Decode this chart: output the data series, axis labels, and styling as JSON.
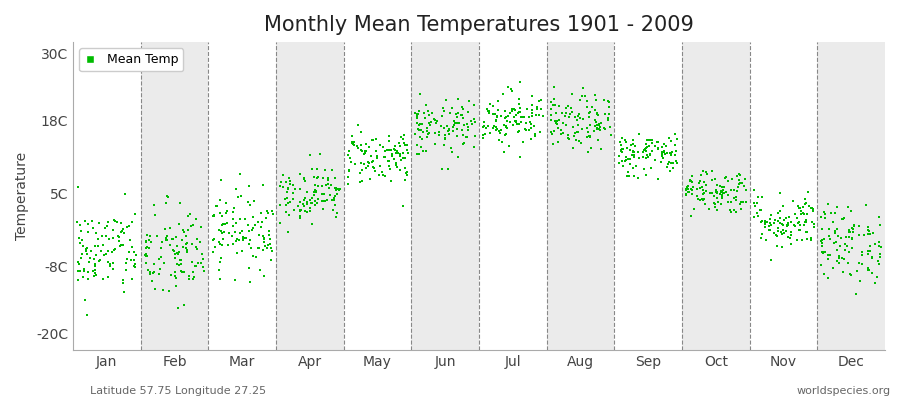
{
  "title": "Monthly Mean Temperatures 1901 - 2009",
  "ylabel": "Temperature",
  "subtitle_left": "Latitude 57.75 Longitude 27.25",
  "subtitle_right": "worldspecies.org",
  "yticks": [
    -20,
    -8,
    5,
    18,
    30
  ],
  "ytick_labels": [
    "-20C",
    "-8C",
    "5C",
    "18C",
    "30C"
  ],
  "ylim": [
    -23,
    32
  ],
  "months": [
    "Jan",
    "Feb",
    "Mar",
    "Apr",
    "May",
    "Jun",
    "Jul",
    "Aug",
    "Sep",
    "Oct",
    "Nov",
    "Dec"
  ],
  "mean_temps": [
    -5.5,
    -6.0,
    -1.5,
    5.0,
    11.5,
    16.5,
    18.5,
    17.5,
    12.0,
    5.5,
    0.0,
    -4.0
  ],
  "std_temps": [
    4.0,
    4.5,
    3.5,
    2.5,
    2.5,
    2.5,
    2.5,
    2.5,
    2.0,
    2.0,
    2.5,
    3.5
  ],
  "trend_slope": [
    0.015,
    0.015,
    0.012,
    0.008,
    0.006,
    0.005,
    0.005,
    0.005,
    0.005,
    0.005,
    0.008,
    0.01
  ],
  "dot_color": "#00BB00",
  "dot_size": 3,
  "legend_label": "Mean Temp",
  "background_color": "#ffffff",
  "plot_bg_color": "#ffffff",
  "alt_band_color": "#ebebeb",
  "n_years": 109,
  "seed": 42,
  "dashed_line_color": "#888888",
  "title_fontsize": 15,
  "axis_label_fontsize": 10,
  "tick_fontsize": 10,
  "subtitle_fontsize": 8
}
